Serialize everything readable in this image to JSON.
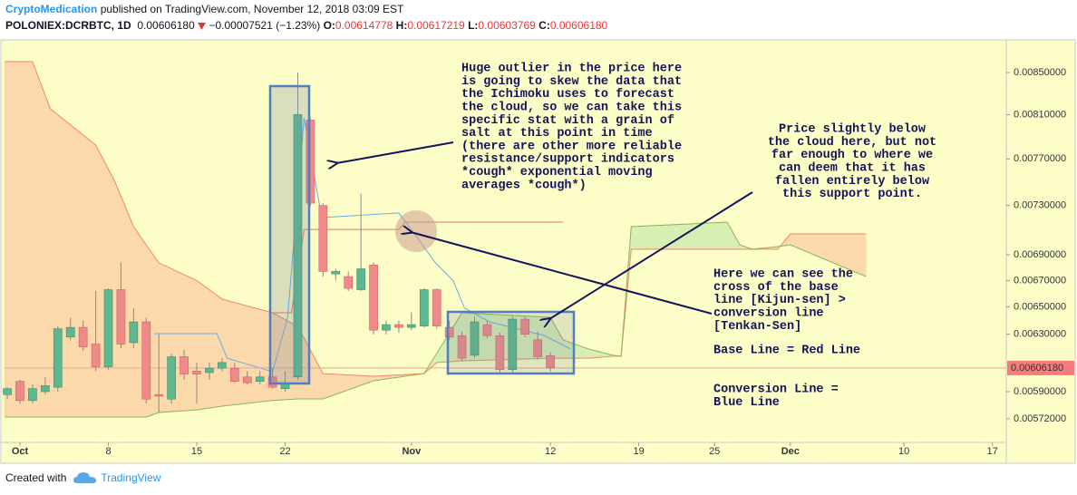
{
  "header": {
    "author": "CryptoMedication",
    "published": "published on TradingView.com, November 12, 2018 03:09 EST",
    "symbol": "POLONIEX:DCRBTC, 1D",
    "price": "0.00606180",
    "change": "−0.00007521 (−1.23%)",
    "ohlc": [
      {
        "label": "O:",
        "value": "0.00614778"
      },
      {
        "label": "H:",
        "value": "0.00617219"
      },
      {
        "label": "L:",
        "value": "0.00603769"
      },
      {
        "label": "C:",
        "value": "0.00606180"
      }
    ]
  },
  "footer": {
    "text": "Created with",
    "brand": "TradingView"
  },
  "annotations": [
    {
      "lines": [
        "Huge outlier in the price here",
        "is going to skew the data that",
        "the Ichimoku uses to forecast",
        "the cloud, so we can take this",
        "specific stat with a grain of",
        "salt at this point in time",
        "(there are other more reliable",
        "resistance/support indicators",
        "*cough* exponential moving",
        "averages *cough*)"
      ]
    },
    {
      "lines": [
        "Price slightly below",
        "the cloud here, but not",
        "far enough to where we",
        "can deem that it has",
        "fallen entirely below",
        "this support point."
      ]
    },
    {
      "lines": [
        "Here we can see the",
        "cross of the base",
        "line [Kijun-sen] >",
        "conversion line",
        "[Tenkan-Sen]"
      ]
    },
    {
      "lines": [
        "Base Line = Red Line"
      ]
    },
    {
      "lines": [
        "Conversion Line =",
        "Blue Line"
      ]
    }
  ],
  "chart_data": {
    "type": "candlestick",
    "log_scale": true,
    "grid": false,
    "up_color": "#5cb88f",
    "down_color": "#f08a8a",
    "x": [
      0,
      1,
      2,
      3,
      4,
      5,
      6,
      7,
      8,
      9,
      10,
      11,
      12,
      13,
      14,
      15,
      16,
      17,
      18,
      19,
      20,
      21,
      22,
      23,
      24,
      25,
      26,
      27,
      28,
      29,
      30,
      31,
      32,
      33,
      34,
      35,
      36,
      37,
      38,
      39,
      40,
      41,
      42,
      43
    ],
    "open": [
      0.00588,
      0.00597,
      0.00584,
      0.0059,
      0.00593,
      0.00628,
      0.00635,
      0.00623,
      0.00607,
      0.00663,
      0.00624,
      0.00639,
      0.00588,
      0.00585,
      0.00614,
      0.00604,
      0.00603,
      0.00606,
      0.00606,
      0.006,
      0.00597,
      0.006,
      0.00592,
      0.006,
      0.00805,
      0.0073,
      0.00675,
      0.00673,
      0.00663,
      0.00682,
      0.00633,
      0.00637,
      0.00635,
      0.00636,
      0.00663,
      0.00635,
      0.00629,
      0.00615,
      0.00637,
      0.00629,
      0.00605,
      0.00641,
      0.00626,
      0.00614778
    ],
    "high": [
      0.00593,
      0.00598,
      0.00595,
      0.006,
      0.00636,
      0.00642,
      0.0064,
      0.00662,
      0.00664,
      0.00684,
      0.00649,
      0.00642,
      0.0063,
      0.00616,
      0.00619,
      0.0061,
      0.0061,
      0.00613,
      0.0061,
      0.00604,
      0.00604,
      0.00606,
      0.00604,
      0.0085,
      0.00807,
      0.00732,
      0.00679,
      0.00677,
      0.0074,
      0.00684,
      0.0064,
      0.0064,
      0.00646,
      0.00664,
      0.00664,
      0.0064,
      0.00632,
      0.00643,
      0.0064,
      0.00631,
      0.00643,
      0.00643,
      0.00632,
      0.00617219
    ],
    "low": [
      0.00585,
      0.00582,
      0.00582,
      0.00588,
      0.0059,
      0.00626,
      0.00618,
      0.00604,
      0.00605,
      0.0062,
      0.0062,
      0.00582,
      0.00576,
      0.00582,
      0.00598,
      0.00582,
      0.00598,
      0.00604,
      0.00596,
      0.00595,
      0.00595,
      0.00592,
      0.0059,
      0.00598,
      0.0073,
      0.00673,
      0.0067,
      0.00662,
      0.00662,
      0.0063,
      0.0063,
      0.00631,
      0.00633,
      0.00635,
      0.00634,
      0.00626,
      0.00611,
      0.00613,
      0.00627,
      0.00603,
      0.00603,
      0.00628,
      0.00612,
      0.00603769
    ],
    "close": [
      0.00592,
      0.00584,
      0.00592,
      0.00594,
      0.00634,
      0.00635,
      0.00621,
      0.00607,
      0.00663,
      0.00623,
      0.00639,
      0.00585,
      0.00587,
      0.00614,
      0.00602,
      0.00602,
      0.00606,
      0.0061,
      0.00597,
      0.00596,
      0.006,
      0.00593,
      0.00596,
      0.0081,
      0.00732,
      0.00677,
      0.00677,
      0.00664,
      0.00679,
      0.00633,
      0.00637,
      0.00635,
      0.00637,
      0.00663,
      0.00636,
      0.00628,
      0.00613,
      0.00639,
      0.00629,
      0.00605,
      0.00641,
      0.0063,
      0.00614,
      0.0060618
    ],
    "cloud": {
      "up_color": "#d8efb4",
      "down_color": "#fbd9aa",
      "span_a_color": "#8bb45a",
      "span_b_color": "#f0876a",
      "x": [
        -0.22,
        2,
        3.4,
        7,
        8.5,
        10,
        11,
        12,
        15,
        17,
        21,
        23,
        25,
        29,
        33,
        34,
        36,
        43,
        44,
        46,
        48,
        48.6,
        49.4,
        57,
        58,
        59,
        61,
        62,
        68
      ],
      "span_a": [
        0.005731,
        0.005731,
        0.005731,
        0.005731,
        0.005731,
        0.005731,
        0.005731,
        0.005761,
        0.005778,
        0.005803,
        0.00584,
        0.005851,
        0.005851,
        0.005974,
        0.006023,
        0.006163,
        0.006457,
        0.006424,
        0.00626,
        0.006195,
        0.00615,
        0.006144,
        0.007126,
        0.007163,
        0.006979,
        0.006944,
        0.006965,
        0.006979,
        0.00673
      ],
      "span_b": [
        0.008606,
        0.008606,
        0.008155,
        0.007823,
        0.007506,
        0.007126,
        0.006979,
        0.006837,
        0.0067,
        0.006559,
        0.006457,
        0.006357,
        0.006023,
        0.006005,
        0.006023,
        0.006099,
        0.006112,
        0.00613,
        0.00613,
        0.00613,
        0.006144,
        0.006144,
        0.006944,
        0.006944,
        0.006944,
        0.006944,
        0.006944,
        0.007067,
        0.007067
      ]
    },
    "series": [
      {
        "color": "#e8736a",
        "x": [
          21,
          22.5,
          23.5,
          31,
          31.5,
          44
        ],
        "values": [
          0.006457,
          0.006457,
          0.007103,
          0.007103,
          0.007163,
          0.007163
        ]
      },
      {
        "color": "#6aaee8",
        "x": [
          11.6,
          16.6,
          17.4,
          21,
          22.2,
          23.5,
          24.9,
          31,
          32.1,
          33.9,
          35.3,
          36.2,
          38.2,
          42.5,
          44.6
        ],
        "values": [
          0.006305,
          0.006305,
          0.00613,
          0.006036,
          0.006424,
          0.00807,
          0.0072,
          0.007238,
          0.007089,
          0.006837,
          0.0067,
          0.006491,
          0.00639,
          0.006292,
          0.006195
        ]
      }
    ],
    "last_price": {
      "value": 0.0060618,
      "label": "0.00606180"
    },
    "xlim": [
      -0.22,
      79.1
    ],
    "xticks": [
      {
        "value": 1,
        "label": "Oct"
      },
      8,
      15,
      22,
      {
        "value": 32,
        "label": "Nov"
      },
      {
        "value": 43,
        "label": "12"
      },
      {
        "value": 50,
        "label": "19"
      },
      {
        "value": 56,
        "label": "25"
      },
      {
        "value": 62,
        "label": "Dec"
      },
      {
        "value": 71,
        "label": "10"
      },
      {
        "value": 78,
        "label": "17"
      }
    ],
    "ylim": [
      0.005567,
      0.008814
    ],
    "yticks": [
      {
        "value": 0.0085,
        "label": "0.00850000"
      },
      {
        "value": 0.0081,
        "label": "0.00810000"
      },
      {
        "value": 0.0077,
        "label": "0.00770000"
      },
      {
        "value": 0.0073,
        "label": "0.00730000"
      },
      {
        "value": 0.0069,
        "label": "0.00690000"
      },
      {
        "value": 0.0067,
        "label": "0.00670000"
      },
      {
        "value": 0.0065,
        "label": "0.00650000"
      },
      {
        "value": 0.0063,
        "label": "0.00630000"
      },
      {
        "value": 0.0059,
        "label": "0.00590000"
      },
      {
        "value": 0.00572,
        "label": "0.00572000"
      }
    ]
  }
}
